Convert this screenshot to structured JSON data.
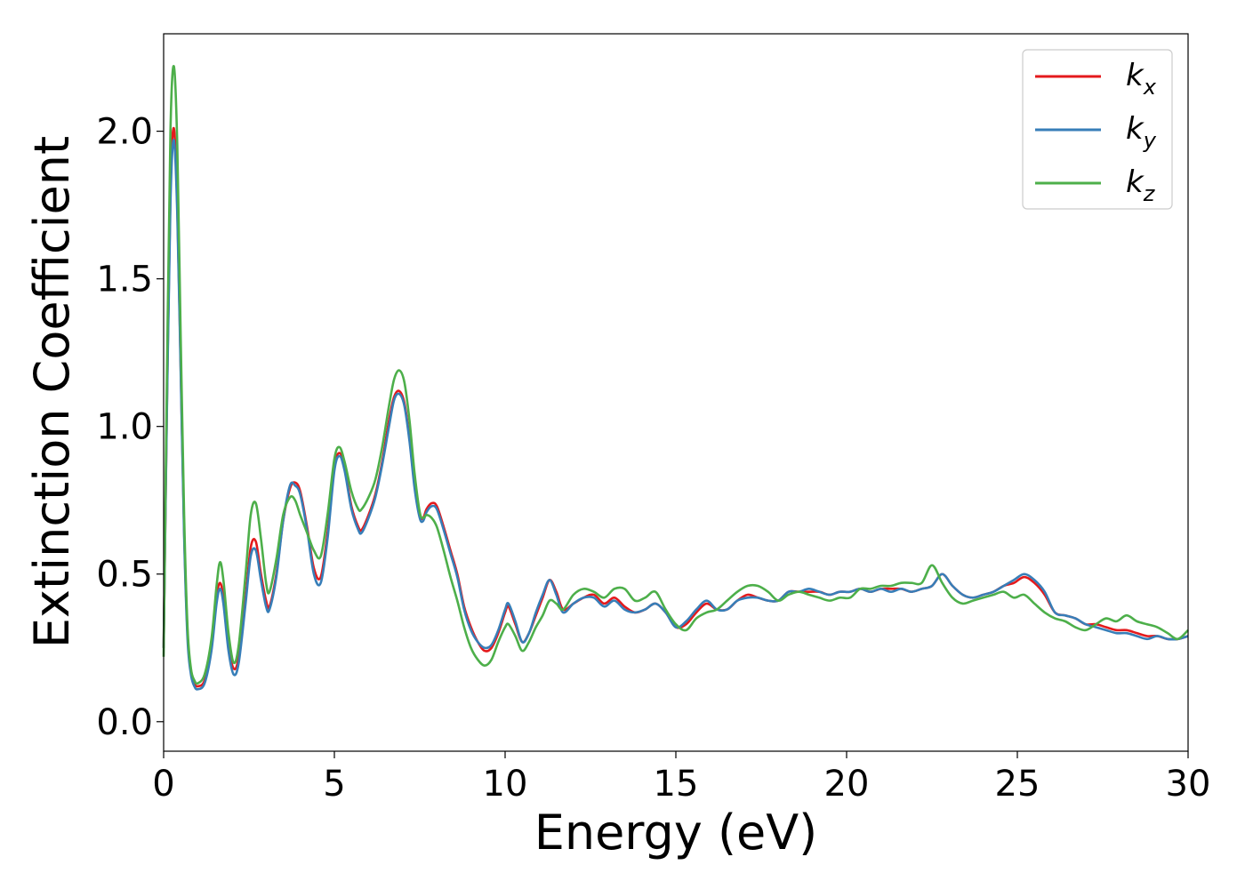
{
  "chart_data": {
    "type": "line",
    "title": "",
    "xlabel": "Energy (eV)",
    "ylabel": "Extinction Coefficient",
    "xlim": [
      0,
      30
    ],
    "ylim": [
      -0.1,
      2.33
    ],
    "xticks": [
      0,
      5,
      10,
      15,
      20,
      25,
      30
    ],
    "xtick_labels": [
      "0",
      "5",
      "10",
      "15",
      "20",
      "25",
      "30"
    ],
    "yticks": [
      0.0,
      0.5,
      1.0,
      1.5,
      2.0
    ],
    "ytick_labels": [
      "0.0",
      "0.5",
      "1.0",
      "1.5",
      "2.0"
    ],
    "grid": false,
    "legend_position": "top-right",
    "series": [
      {
        "name": "k_x",
        "label_main": "k",
        "label_sub": "x",
        "color": "#e41a1c",
        "x": [
          0,
          0.1,
          0.2,
          0.3,
          0.4,
          0.5,
          0.6,
          0.7,
          0.8,
          0.9,
          1.0,
          1.2,
          1.4,
          1.55,
          1.65,
          1.75,
          1.9,
          2.05,
          2.2,
          2.4,
          2.55,
          2.7,
          2.85,
          3.0,
          3.1,
          3.3,
          3.5,
          3.7,
          3.85,
          4.0,
          4.2,
          4.4,
          4.6,
          4.8,
          5.0,
          5.15,
          5.3,
          5.5,
          5.7,
          5.8,
          6.0,
          6.2,
          6.4,
          6.6,
          6.75,
          6.9,
          7.05,
          7.2,
          7.35,
          7.5,
          7.6,
          7.7,
          7.85,
          8.0,
          8.2,
          8.4,
          8.6,
          8.8,
          9.0,
          9.2,
          9.4,
          9.6,
          9.8,
          10.0,
          10.1,
          10.3,
          10.5,
          10.7,
          10.9,
          11.1,
          11.3,
          11.5,
          11.7,
          12.0,
          12.3,
          12.6,
          12.9,
          13.2,
          13.5,
          13.8,
          14.1,
          14.4,
          14.7,
          15.0,
          15.3,
          15.6,
          15.9,
          16.2,
          16.5,
          16.8,
          17.1,
          17.4,
          17.7,
          18.0,
          18.3,
          18.6,
          18.9,
          19.2,
          19.5,
          19.8,
          20.1,
          20.4,
          20.7,
          21.0,
          21.3,
          21.6,
          21.9,
          22.2,
          22.5,
          22.8,
          23.1,
          23.4,
          23.7,
          24.0,
          24.3,
          24.6,
          24.9,
          25.2,
          25.5,
          25.8,
          26.1,
          26.4,
          26.7,
          27.0,
          27.3,
          27.6,
          27.9,
          28.2,
          28.5,
          28.8,
          29.1,
          29.4,
          29.7,
          30.0
        ],
        "y": [
          0.25,
          1.1,
          1.8,
          2.01,
          1.75,
          1.2,
          0.65,
          0.3,
          0.17,
          0.13,
          0.12,
          0.14,
          0.25,
          0.42,
          0.47,
          0.42,
          0.26,
          0.18,
          0.22,
          0.42,
          0.59,
          0.61,
          0.5,
          0.41,
          0.39,
          0.5,
          0.68,
          0.79,
          0.81,
          0.78,
          0.66,
          0.52,
          0.49,
          0.64,
          0.86,
          0.91,
          0.86,
          0.73,
          0.66,
          0.65,
          0.7,
          0.77,
          0.88,
          1.02,
          1.1,
          1.12,
          1.08,
          0.96,
          0.8,
          0.7,
          0.69,
          0.72,
          0.74,
          0.73,
          0.66,
          0.58,
          0.5,
          0.39,
          0.32,
          0.27,
          0.24,
          0.25,
          0.3,
          0.37,
          0.39,
          0.33,
          0.27,
          0.3,
          0.36,
          0.42,
          0.48,
          0.44,
          0.38,
          0.4,
          0.42,
          0.43,
          0.4,
          0.42,
          0.39,
          0.37,
          0.38,
          0.4,
          0.37,
          0.32,
          0.33,
          0.37,
          0.4,
          0.38,
          0.38,
          0.41,
          0.43,
          0.42,
          0.41,
          0.41,
          0.44,
          0.44,
          0.44,
          0.44,
          0.43,
          0.44,
          0.44,
          0.45,
          0.44,
          0.45,
          0.45,
          0.45,
          0.44,
          0.45,
          0.46,
          0.5,
          0.46,
          0.43,
          0.42,
          0.43,
          0.44,
          0.46,
          0.47,
          0.49,
          0.47,
          0.43,
          0.37,
          0.36,
          0.35,
          0.33,
          0.33,
          0.32,
          0.31,
          0.31,
          0.3,
          0.29,
          0.29,
          0.28,
          0.28,
          0.29
        ]
      },
      {
        "name": "k_y",
        "label_main": "k",
        "label_sub": "y",
        "color": "#377eb8",
        "x": [
          0,
          0.1,
          0.2,
          0.3,
          0.4,
          0.5,
          0.6,
          0.7,
          0.8,
          0.9,
          1.0,
          1.2,
          1.4,
          1.55,
          1.65,
          1.75,
          1.9,
          2.05,
          2.2,
          2.4,
          2.55,
          2.7,
          2.85,
          3.0,
          3.1,
          3.3,
          3.5,
          3.7,
          3.85,
          4.0,
          4.2,
          4.4,
          4.6,
          4.8,
          5.0,
          5.15,
          5.3,
          5.5,
          5.7,
          5.8,
          6.0,
          6.2,
          6.4,
          6.6,
          6.75,
          6.9,
          7.05,
          7.2,
          7.35,
          7.5,
          7.6,
          7.7,
          7.85,
          8.0,
          8.2,
          8.4,
          8.6,
          8.8,
          9.0,
          9.2,
          9.4,
          9.6,
          9.8,
          10.0,
          10.1,
          10.3,
          10.5,
          10.7,
          10.9,
          11.1,
          11.3,
          11.5,
          11.7,
          12.0,
          12.3,
          12.6,
          12.9,
          13.2,
          13.5,
          13.8,
          14.1,
          14.4,
          14.7,
          15.0,
          15.3,
          15.6,
          15.9,
          16.2,
          16.5,
          16.8,
          17.1,
          17.4,
          17.7,
          18.0,
          18.3,
          18.6,
          18.9,
          19.2,
          19.5,
          19.8,
          20.1,
          20.4,
          20.7,
          21.0,
          21.3,
          21.6,
          21.9,
          22.2,
          22.5,
          22.8,
          23.1,
          23.4,
          23.7,
          24.0,
          24.3,
          24.6,
          24.9,
          25.2,
          25.5,
          25.8,
          26.1,
          26.4,
          26.7,
          27.0,
          27.3,
          27.6,
          27.9,
          28.2,
          28.5,
          28.8,
          29.1,
          29.4,
          29.7,
          30.0
        ],
        "y": [
          0.25,
          1.08,
          1.76,
          1.97,
          1.72,
          1.18,
          0.63,
          0.28,
          0.16,
          0.12,
          0.11,
          0.13,
          0.24,
          0.4,
          0.45,
          0.4,
          0.24,
          0.16,
          0.2,
          0.4,
          0.56,
          0.58,
          0.48,
          0.39,
          0.38,
          0.49,
          0.68,
          0.8,
          0.8,
          0.77,
          0.65,
          0.5,
          0.47,
          0.62,
          0.85,
          0.9,
          0.85,
          0.72,
          0.65,
          0.64,
          0.69,
          0.76,
          0.87,
          1.0,
          1.09,
          1.11,
          1.07,
          0.95,
          0.79,
          0.69,
          0.68,
          0.71,
          0.73,
          0.72,
          0.65,
          0.57,
          0.49,
          0.38,
          0.31,
          0.27,
          0.25,
          0.26,
          0.31,
          0.38,
          0.4,
          0.34,
          0.27,
          0.3,
          0.37,
          0.43,
          0.48,
          0.43,
          0.37,
          0.4,
          0.42,
          0.42,
          0.39,
          0.41,
          0.38,
          0.37,
          0.38,
          0.4,
          0.37,
          0.32,
          0.34,
          0.38,
          0.41,
          0.38,
          0.38,
          0.41,
          0.42,
          0.42,
          0.41,
          0.41,
          0.44,
          0.44,
          0.45,
          0.44,
          0.43,
          0.44,
          0.44,
          0.45,
          0.44,
          0.45,
          0.44,
          0.45,
          0.44,
          0.45,
          0.46,
          0.5,
          0.46,
          0.43,
          0.42,
          0.43,
          0.44,
          0.46,
          0.48,
          0.5,
          0.48,
          0.44,
          0.37,
          0.36,
          0.35,
          0.33,
          0.32,
          0.31,
          0.3,
          0.3,
          0.29,
          0.28,
          0.29,
          0.28,
          0.28,
          0.29
        ]
      },
      {
        "name": "k_z",
        "label_main": "k",
        "label_sub": "z",
        "color": "#4daf4a",
        "x": [
          0,
          0.1,
          0.2,
          0.3,
          0.4,
          0.5,
          0.6,
          0.7,
          0.8,
          0.9,
          1.0,
          1.2,
          1.4,
          1.55,
          1.65,
          1.75,
          1.9,
          2.05,
          2.2,
          2.4,
          2.55,
          2.7,
          2.85,
          3.0,
          3.1,
          3.3,
          3.5,
          3.7,
          3.85,
          4.0,
          4.2,
          4.4,
          4.6,
          4.8,
          5.0,
          5.15,
          5.3,
          5.5,
          5.7,
          5.8,
          6.0,
          6.2,
          6.4,
          6.6,
          6.75,
          6.9,
          7.05,
          7.2,
          7.35,
          7.5,
          7.6,
          7.7,
          7.85,
          8.0,
          8.2,
          8.4,
          8.6,
          8.8,
          9.0,
          9.2,
          9.4,
          9.6,
          9.8,
          10.0,
          10.1,
          10.3,
          10.5,
          10.7,
          10.9,
          11.1,
          11.3,
          11.5,
          11.7,
          12.0,
          12.3,
          12.6,
          12.9,
          13.2,
          13.5,
          13.8,
          14.1,
          14.4,
          14.7,
          15.0,
          15.3,
          15.6,
          15.9,
          16.2,
          16.5,
          16.8,
          17.1,
          17.4,
          17.7,
          18.0,
          18.3,
          18.6,
          18.9,
          19.2,
          19.5,
          19.8,
          20.1,
          20.4,
          20.7,
          21.0,
          21.3,
          21.6,
          21.9,
          22.2,
          22.5,
          22.8,
          23.1,
          23.4,
          23.7,
          24.0,
          24.3,
          24.6,
          24.9,
          25.2,
          25.5,
          25.8,
          26.1,
          26.4,
          26.7,
          27.0,
          27.3,
          27.6,
          27.9,
          28.2,
          28.5,
          28.8,
          29.1,
          29.4,
          29.7,
          30.0
        ],
        "y": [
          0.22,
          1.2,
          2.0,
          2.22,
          1.95,
          1.3,
          0.7,
          0.32,
          0.18,
          0.14,
          0.13,
          0.16,
          0.28,
          0.46,
          0.54,
          0.48,
          0.3,
          0.2,
          0.26,
          0.5,
          0.7,
          0.74,
          0.62,
          0.47,
          0.44,
          0.55,
          0.7,
          0.76,
          0.75,
          0.7,
          0.64,
          0.58,
          0.56,
          0.7,
          0.89,
          0.93,
          0.88,
          0.78,
          0.72,
          0.72,
          0.76,
          0.82,
          0.93,
          1.07,
          1.16,
          1.19,
          1.15,
          1.02,
          0.84,
          0.71,
          0.69,
          0.7,
          0.69,
          0.66,
          0.58,
          0.49,
          0.41,
          0.32,
          0.25,
          0.21,
          0.19,
          0.21,
          0.27,
          0.32,
          0.33,
          0.29,
          0.24,
          0.27,
          0.32,
          0.36,
          0.41,
          0.4,
          0.38,
          0.43,
          0.45,
          0.44,
          0.42,
          0.45,
          0.45,
          0.41,
          0.42,
          0.44,
          0.38,
          0.33,
          0.31,
          0.35,
          0.37,
          0.38,
          0.41,
          0.44,
          0.46,
          0.46,
          0.44,
          0.41,
          0.43,
          0.44,
          0.43,
          0.42,
          0.41,
          0.42,
          0.42,
          0.45,
          0.45,
          0.46,
          0.46,
          0.47,
          0.47,
          0.47,
          0.53,
          0.47,
          0.42,
          0.4,
          0.41,
          0.42,
          0.43,
          0.44,
          0.42,
          0.43,
          0.4,
          0.37,
          0.35,
          0.34,
          0.32,
          0.31,
          0.33,
          0.35,
          0.34,
          0.36,
          0.34,
          0.33,
          0.32,
          0.3,
          0.28,
          0.31
        ]
      }
    ]
  }
}
